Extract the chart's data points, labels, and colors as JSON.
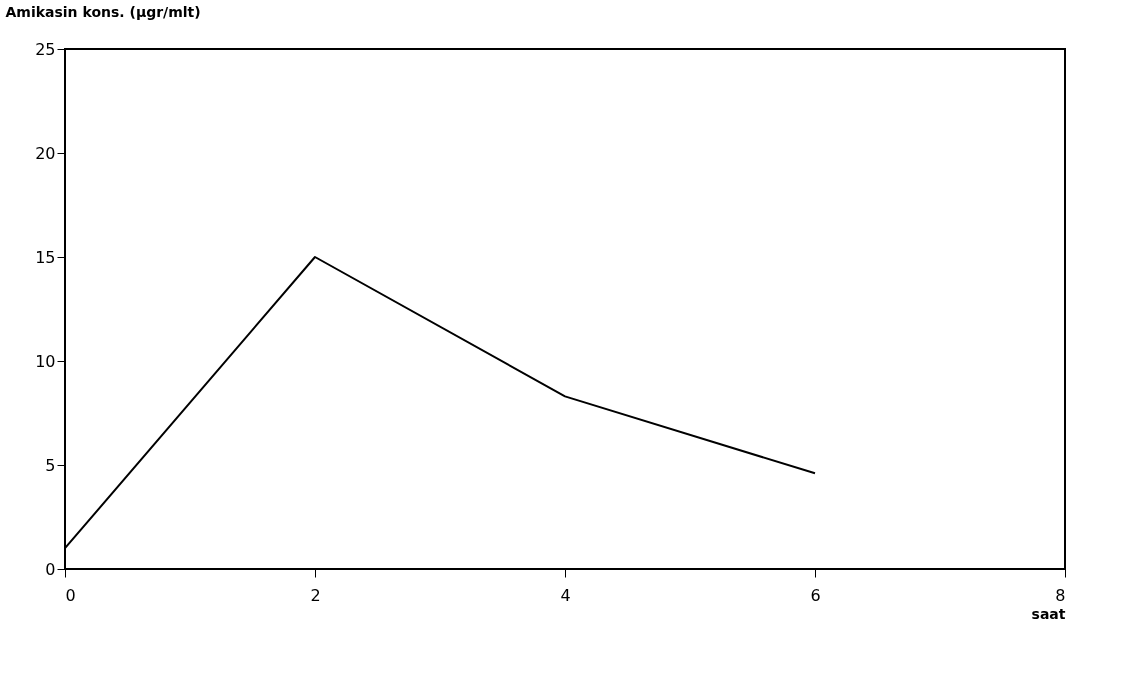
{
  "chart_data": {
    "type": "line",
    "ylabel": "Amikasin kons. (µgr/mlt)",
    "xlabel": "saat",
    "x": [
      0,
      2,
      4,
      6
    ],
    "series": [
      {
        "color": "#000000",
        "values": [
          1,
          15,
          8.3,
          4.6
        ]
      }
    ],
    "xlim": [
      0,
      8
    ],
    "xticks": [
      0,
      2,
      4,
      6,
      8
    ],
    "ylim": [
      0,
      25
    ],
    "yticks": [
      0,
      5,
      10,
      15,
      20,
      25
    ],
    "grid": false,
    "marker": "none",
    "line_style": "solid"
  }
}
